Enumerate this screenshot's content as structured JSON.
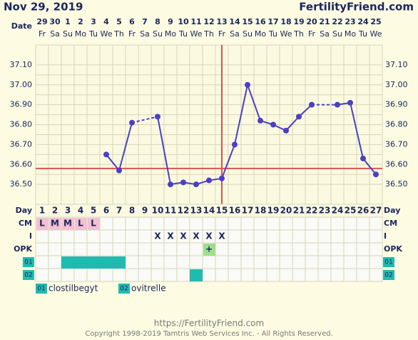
{
  "header": {
    "date": "Nov 29, 2019",
    "site": "FertilityFriend.com"
  },
  "chart_data": {
    "type": "line",
    "date_label": "Date",
    "dates": [
      "29",
      "30",
      "1",
      "2",
      "3",
      "4",
      "5",
      "6",
      "7",
      "8",
      "9",
      "10",
      "11",
      "12",
      "13",
      "14",
      "15",
      "16",
      "17",
      "18",
      "19",
      "20",
      "21",
      "22",
      "23",
      "24",
      "25"
    ],
    "weekdays": [
      "Fr",
      "Sa",
      "Su",
      "Mo",
      "Tu",
      "We",
      "Th",
      "Fr",
      "Sa",
      "Su",
      "Mo",
      "Tu",
      "We",
      "Th",
      "Fr",
      "Sa",
      "Su",
      "Mo",
      "Tu",
      "We",
      "Th",
      "Fr",
      "Sa",
      "Su",
      "Mo",
      "Tu",
      "We"
    ],
    "day_label": "Day",
    "categories": [
      1,
      2,
      3,
      4,
      5,
      6,
      7,
      8,
      9,
      10,
      11,
      12,
      13,
      14,
      15,
      16,
      17,
      18,
      19,
      20,
      21,
      22,
      23,
      24,
      25,
      26,
      27
    ],
    "values": [
      null,
      null,
      null,
      null,
      null,
      36.65,
      36.57,
      36.81,
      null,
      36.84,
      36.5,
      36.51,
      36.5,
      36.52,
      36.53,
      36.7,
      37.0,
      36.82,
      36.8,
      36.77,
      36.84,
      36.9,
      null,
      36.9,
      36.91,
      36.63,
      36.55
    ],
    "color": "#4b3fc4",
    "ylim": [
      36.4,
      37.2
    ],
    "yticks": [
      {
        "value": 36.5,
        "label": "36.50"
      },
      {
        "value": 36.6,
        "label": "36.60"
      },
      {
        "value": 36.7,
        "label": "36.70"
      },
      {
        "value": 36.8,
        "label": "36.80"
      },
      {
        "value": 36.9,
        "label": "36.90"
      },
      {
        "value": 37.0,
        "label": "37.00"
      },
      {
        "value": 37.1,
        "label": "37.10"
      }
    ],
    "grid": true,
    "coverline": 36.58,
    "ovulation_day": 15,
    "marker_color": "#d9534f",
    "rows": [
      {
        "label": "CM",
        "color": "#f3c1d3",
        "entries": [
          "L",
          "M",
          "M",
          "L",
          "L",
          null,
          null,
          null,
          null,
          null,
          null,
          null,
          null,
          null,
          null,
          null,
          null,
          null,
          null,
          null,
          null,
          null,
          null,
          null,
          null,
          null,
          null
        ]
      },
      {
        "label": "I",
        "entries": [
          null,
          null,
          null,
          null,
          null,
          null,
          null,
          null,
          null,
          "X",
          "X",
          "X",
          "X",
          "X",
          "X",
          null,
          null,
          null,
          null,
          null,
          null,
          null,
          null,
          null,
          null,
          null,
          null
        ]
      },
      {
        "label": "OPK",
        "color": "#9ddf8c",
        "entries": [
          null,
          null,
          null,
          null,
          null,
          null,
          null,
          null,
          null,
          null,
          null,
          null,
          null,
          "+",
          null,
          null,
          null,
          null,
          null,
          null,
          null,
          null,
          null,
          null,
          null,
          null,
          null
        ]
      }
    ],
    "medications": [
      {
        "code": "01",
        "name": "clostilbegyt",
        "color": "#1fbbb0",
        "days": [
          3,
          4,
          5,
          6,
          7
        ]
      },
      {
        "code": "02",
        "name": "ovitrelle",
        "color": "#1fbbb0",
        "days": [
          13
        ]
      }
    ]
  },
  "footer": {
    "url": "https://FertilityFriend.com",
    "copyright": "Copyright 1998-2019 Tamtris Web Services Inc. - All Rights Reserved."
  }
}
